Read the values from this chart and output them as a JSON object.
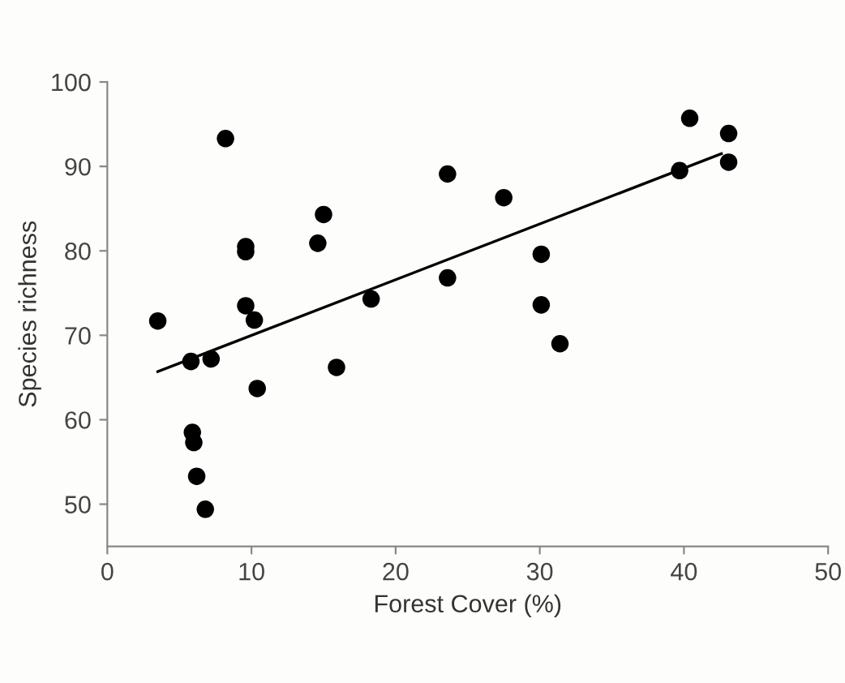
{
  "chart_data": {
    "type": "scatter",
    "xlabel": "Forest Cover (%)",
    "ylabel": "Species richness",
    "xlim": [
      0,
      50
    ],
    "ylim": [
      45,
      100
    ],
    "xticks": [
      0,
      10,
      20,
      30,
      40,
      50
    ],
    "yticks": [
      50,
      60,
      70,
      80,
      90,
      100
    ],
    "grid": false,
    "legend": false,
    "marker": "circle",
    "series": [
      {
        "color": "#000000",
        "x": [
          3.5,
          8.2,
          9.6,
          9.6,
          9.6,
          10.2,
          10.4,
          5.8,
          7.2,
          5.9,
          6.0,
          6.2,
          6.8,
          14.6,
          15.0,
          15.9,
          18.3,
          23.6,
          23.6,
          27.5,
          30.1,
          30.1,
          31.4,
          39.7,
          40.4,
          43.1,
          43.1
        ],
        "values": [
          71.7,
          93.3,
          80.5,
          79.9,
          73.5,
          71.8,
          63.7,
          66.9,
          67.2,
          58.5,
          57.3,
          53.3,
          49.4,
          80.9,
          84.3,
          66.2,
          74.3,
          89.1,
          76.8,
          86.3,
          79.6,
          73.6,
          69.0,
          89.5,
          95.7,
          93.9,
          90.5
        ]
      },
      {
        "type": "line",
        "color": "#000000",
        "x": [
          3.5,
          42.6
        ],
        "values": [
          65.7,
          91.5
        ],
        "marker": "none",
        "line_style": "solid"
      }
    ]
  }
}
